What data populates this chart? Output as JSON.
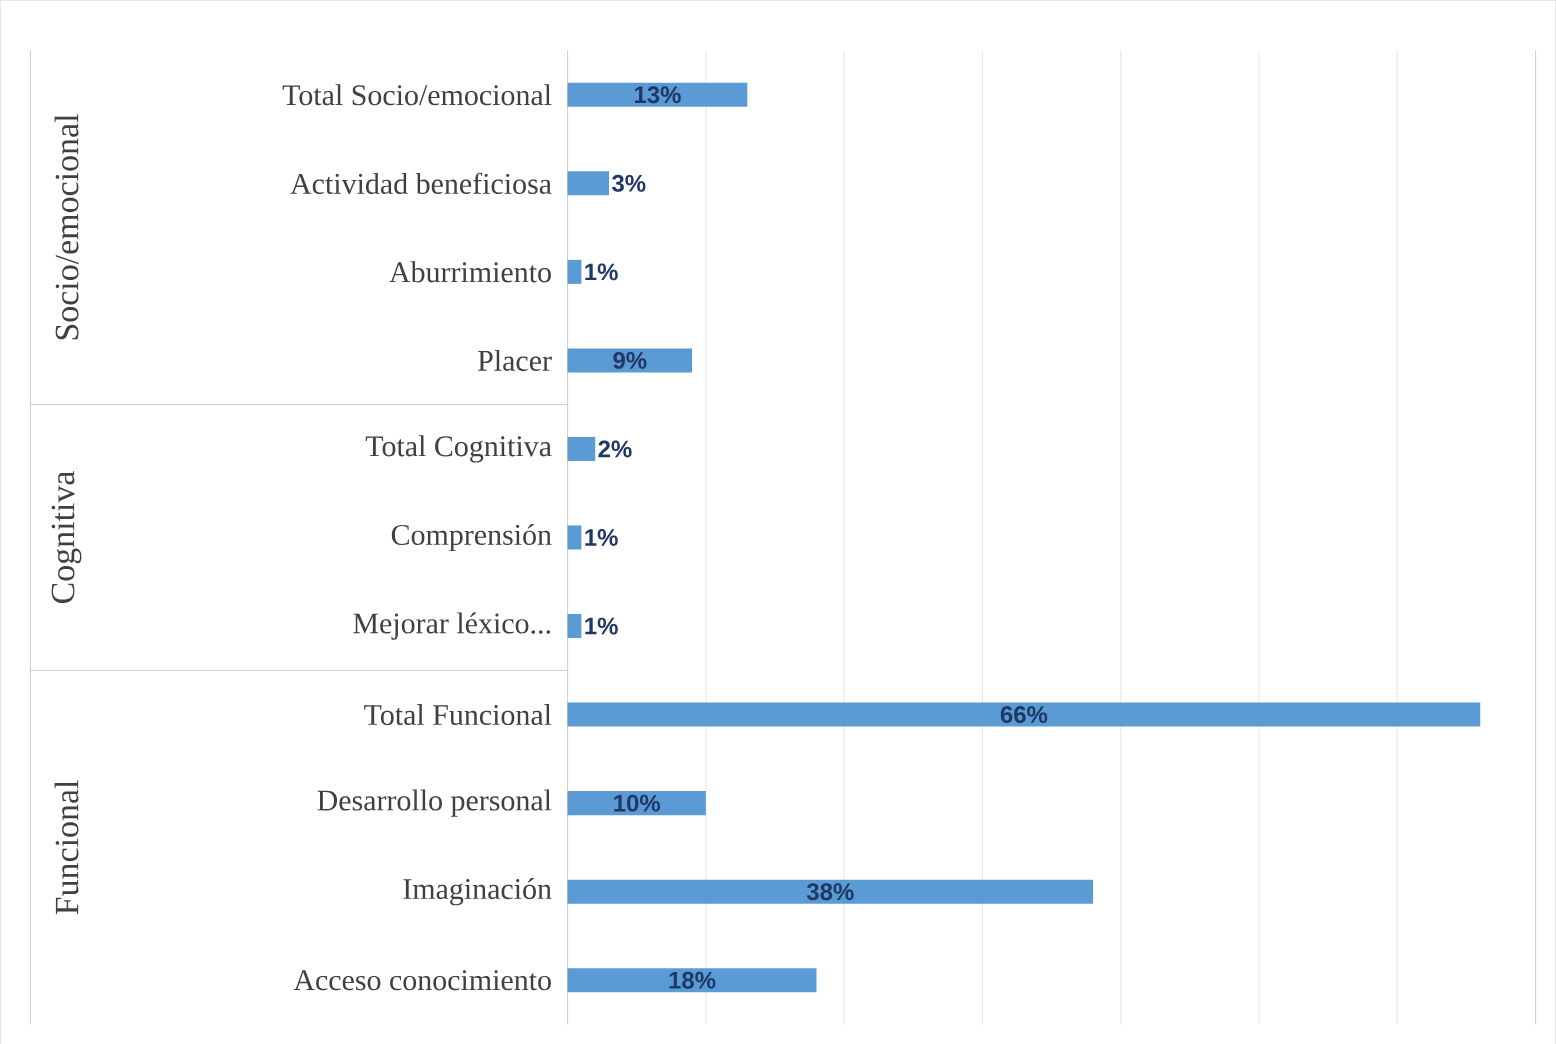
{
  "chart_data": {
    "type": "bar",
    "orientation": "horizontal",
    "categories": [
      "Total Socio/emocional",
      "Actividad beneficiosa",
      "Aburrimiento",
      "Placer",
      "Total Cognitiva",
      "Comprensión",
      "Mejorar léxico...",
      "Total Funcional",
      "Desarrollo personal",
      "Imaginación",
      "Acceso conocimiento"
    ],
    "values": [
      13,
      3,
      1,
      9,
      2,
      1,
      1,
      66,
      10,
      38,
      18
    ],
    "value_labels": [
      "13%",
      "3%",
      "1%",
      "9%",
      "2%",
      "1%",
      "1%",
      "66%",
      "10%",
      "38%",
      "18%"
    ],
    "color": "#5b9bd5",
    "xlim": [
      0,
      70
    ],
    "xticks": [
      {
        "value": 0,
        "label": null
      },
      {
        "value": 10,
        "label": null
      },
      {
        "value": 20,
        "label": null
      },
      {
        "value": 30,
        "label": null
      },
      {
        "value": 40,
        "label": null
      },
      {
        "value": 50,
        "label": null
      },
      {
        "value": 60,
        "label": null
      },
      {
        "value": 70,
        "label": null
      }
    ],
    "tick_labels": "y",
    "grid": "x",
    "annotations": [
      "Socio/emocional",
      "Cognitiva",
      "Funcional"
    ]
  }
}
